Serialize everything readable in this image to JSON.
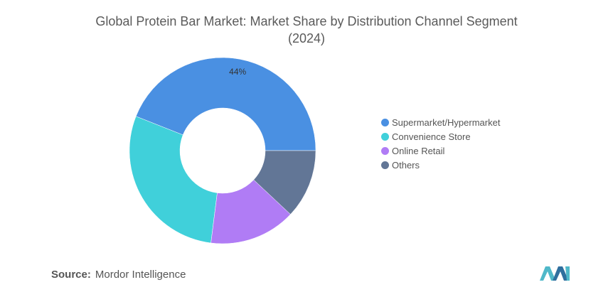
{
  "chart_data": {
    "type": "pie",
    "title": "Global Protein Bar Market: Market Share by Distribution Channel Segment",
    "subtitle": "(2024)",
    "categories": [
      "Supermarket/Hypermarket",
      "Convenience Store",
      "Online Retail",
      "Others"
    ],
    "values": [
      44,
      29,
      15,
      12
    ],
    "data_labels": [
      "44%",
      "",
      "",
      ""
    ],
    "colors": [
      "#4a90e2",
      "#40d0da",
      "#b07cf5",
      "#627696"
    ],
    "legend_position": "right",
    "donut": true
  },
  "source": {
    "label": "Source:",
    "text": "Mordor Intelligence"
  }
}
